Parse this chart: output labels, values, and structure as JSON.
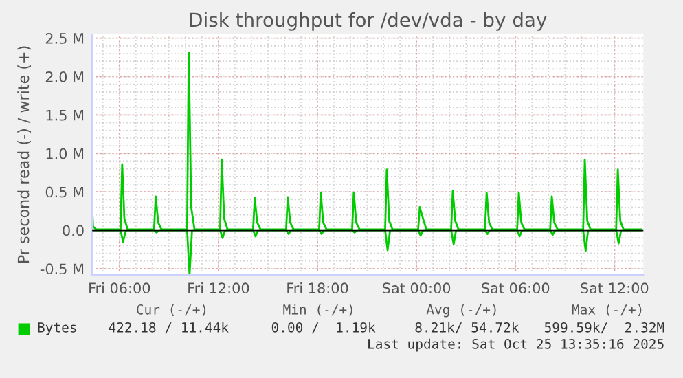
{
  "chart_data": {
    "type": "line",
    "title": "Disk throughput for /dev/vda - by day",
    "ylabel": "Pr second read (-) / write (+)",
    "series": [
      {
        "name": "Bytes",
        "color": "#00cc00",
        "x": [
          "2025-10-24T04:21",
          "2025-10-24T04:24",
          "2025-10-24T04:36",
          "2025-10-24T06:04",
          "2025-10-24T06:10",
          "2025-10-24T06:18",
          "2025-10-24T06:30",
          "2025-10-24T08:06",
          "2025-10-24T08:12",
          "2025-10-24T08:21",
          "2025-10-24T08:33",
          "2025-10-24T10:06",
          "2025-10-24T10:12",
          "2025-10-24T10:21",
          "2025-10-24T10:33",
          "2025-10-24T12:06",
          "2025-10-24T12:12",
          "2025-10-24T12:21",
          "2025-10-24T12:33",
          "2025-10-24T14:06",
          "2025-10-24T14:12",
          "2025-10-24T14:21",
          "2025-10-24T14:33",
          "2025-10-24T16:06",
          "2025-10-24T16:12",
          "2025-10-24T16:21",
          "2025-10-24T16:33",
          "2025-10-24T18:06",
          "2025-10-24T18:12",
          "2025-10-24T18:21",
          "2025-10-24T18:33",
          "2025-10-24T20:06",
          "2025-10-24T20:12",
          "2025-10-24T20:21",
          "2025-10-24T20:33",
          "2025-10-24T22:06",
          "2025-10-24T22:12",
          "2025-10-24T22:21",
          "2025-10-24T22:33",
          "2025-10-25T00:06",
          "2025-10-25T00:12",
          "2025-10-25T00:24",
          "2025-10-25T00:36",
          "2025-10-25T02:06",
          "2025-10-25T02:12",
          "2025-10-25T02:21",
          "2025-10-25T02:33",
          "2025-10-25T04:09",
          "2025-10-25T04:15",
          "2025-10-25T04:24",
          "2025-10-25T04:36",
          "2025-10-25T06:06",
          "2025-10-25T06:12",
          "2025-10-25T06:21",
          "2025-10-25T06:33",
          "2025-10-25T08:06",
          "2025-10-25T08:12",
          "2025-10-25T08:21",
          "2025-10-25T08:33",
          "2025-10-25T10:06",
          "2025-10-25T10:12",
          "2025-10-25T10:21",
          "2025-10-25T10:33",
          "2025-10-25T12:06",
          "2025-10-25T12:12",
          "2025-10-25T12:21",
          "2025-10-25T12:33",
          "2025-10-25T13:36"
        ],
        "values": [
          0.28,
          0.05,
          0.01,
          0.01,
          0.86,
          0.15,
          0.01,
          0.01,
          0.44,
          0.1,
          0.01,
          0.01,
          2.31,
          0.3,
          0.01,
          0.01,
          0.92,
          0.15,
          0.01,
          0.01,
          0.42,
          0.1,
          0.01,
          0.01,
          0.43,
          0.1,
          0.01,
          0.01,
          0.49,
          0.1,
          0.01,
          0.01,
          0.49,
          0.1,
          0.01,
          0.01,
          0.79,
          0.12,
          0.01,
          0.01,
          0.3,
          0.15,
          0.01,
          0.01,
          0.51,
          0.12,
          0.01,
          0.01,
          0.49,
          0.1,
          0.01,
          0.01,
          0.49,
          0.1,
          0.01,
          0.01,
          0.44,
          0.1,
          0.01,
          0.01,
          0.92,
          0.12,
          0.01,
          0.01,
          0.79,
          0.12,
          0.01,
          0.01
        ]
      },
      {
        "color": "#00cc00",
        "x": [
          "2025-10-24T04:21",
          "2025-10-24T06:04",
          "2025-10-24T06:13",
          "2025-10-24T06:24",
          "2025-10-24T08:06",
          "2025-10-24T08:15",
          "2025-10-24T08:24",
          "2025-10-24T10:06",
          "2025-10-24T10:15",
          "2025-10-24T10:24",
          "2025-10-24T12:06",
          "2025-10-24T12:15",
          "2025-10-24T12:24",
          "2025-10-24T14:06",
          "2025-10-24T14:15",
          "2025-10-24T14:24",
          "2025-10-24T16:06",
          "2025-10-24T16:15",
          "2025-10-24T16:24",
          "2025-10-24T18:06",
          "2025-10-24T18:15",
          "2025-10-24T18:24",
          "2025-10-24T20:06",
          "2025-10-24T20:15",
          "2025-10-24T20:24",
          "2025-10-24T22:06",
          "2025-10-24T22:15",
          "2025-10-24T22:24",
          "2025-10-25T00:06",
          "2025-10-25T00:15",
          "2025-10-25T00:24",
          "2025-10-25T02:06",
          "2025-10-25T02:15",
          "2025-10-25T02:24",
          "2025-10-25T04:09",
          "2025-10-25T04:18",
          "2025-10-25T04:27",
          "2025-10-25T06:06",
          "2025-10-25T06:15",
          "2025-10-25T06:24",
          "2025-10-25T08:06",
          "2025-10-25T08:15",
          "2025-10-25T08:24",
          "2025-10-25T10:06",
          "2025-10-25T10:15",
          "2025-10-25T10:24",
          "2025-10-25T12:06",
          "2025-10-25T12:15",
          "2025-10-25T12:24",
          "2025-10-25T13:36"
        ],
        "values": [
          0,
          0,
          -0.15,
          0,
          0,
          -0.03,
          0,
          0,
          -0.58,
          0,
          0,
          -0.1,
          0,
          0,
          -0.08,
          0,
          0,
          -0.05,
          0,
          0,
          -0.05,
          0,
          0,
          -0.03,
          0,
          0,
          -0.26,
          0,
          0,
          -0.07,
          0,
          0,
          -0.18,
          0,
          0,
          -0.05,
          0,
          0,
          -0.08,
          0,
          0,
          -0.06,
          0,
          0,
          -0.27,
          0,
          0,
          -0.17,
          0,
          0
        ]
      }
    ],
    "xlim": [
      "2025-10-24T04:21",
      "2025-10-25T13:45"
    ],
    "xticks": [
      {
        "value": "2025-10-24T06:00",
        "label": "Fri 06:00"
      },
      {
        "value": "2025-10-24T12:00",
        "label": "Fri 12:00"
      },
      {
        "value": "2025-10-24T18:00",
        "label": "Fri 18:00"
      },
      {
        "value": "2025-10-25T00:00",
        "label": "Sat 00:00"
      },
      {
        "value": "2025-10-25T06:00",
        "label": "Sat 06:00"
      },
      {
        "value": "2025-10-25T12:00",
        "label": "Sat 12:00"
      }
    ],
    "ylim": [
      -0.58,
      2.55
    ],
    "yticks": [
      {
        "value": -0.5,
        "label": "-0.5 M"
      },
      {
        "value": 0,
        "label": "0.0"
      },
      {
        "value": 0.5,
        "label": "0.5 M"
      },
      {
        "value": 1,
        "label": "1.0 M"
      },
      {
        "value": 1.5,
        "label": "1.5 M"
      },
      {
        "value": 2,
        "label": "2.0 M"
      },
      {
        "value": 2.5,
        "label": "2.5 M"
      }
    ],
    "ref_lines": [
      {
        "axis": "y",
        "value": 0,
        "color": "#000000"
      }
    ],
    "grid": true,
    "legend": "bottom left",
    "annotations": [
      "Cur (-/+)",
      "Min (-/+)",
      "Avg (-/+)",
      "Max (-/+)",
      "422.18 / 11.44k",
      "0.00 /  1.19k",
      "8.21k/ 54.72k",
      "599.59k/  2.32M",
      "Last update: Sat Oct 25 13:35:16 2025"
    ]
  }
}
